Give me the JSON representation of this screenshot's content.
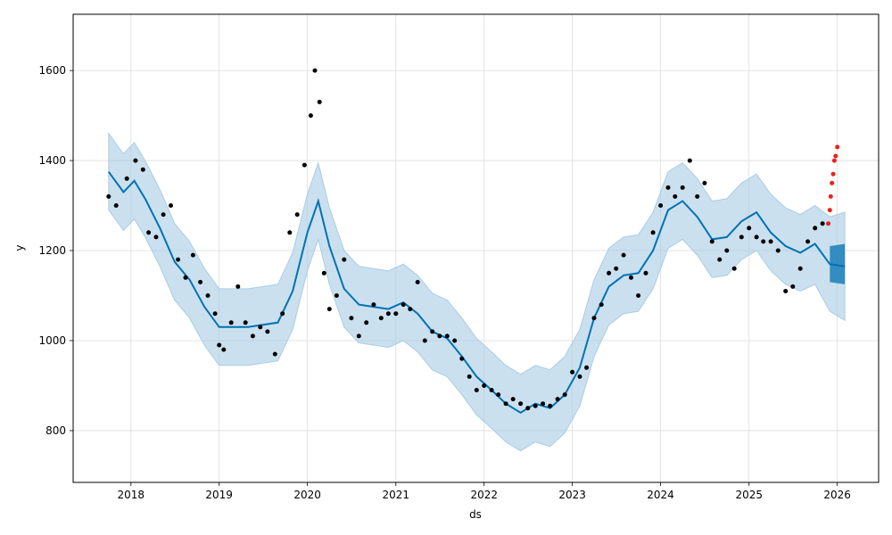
{
  "chart_data": {
    "type": "scatter",
    "title": "",
    "xlabel": "ds",
    "ylabel": "y",
    "x_type": "date",
    "xlim": [
      "2017-05-07",
      "2026-06-21"
    ],
    "ylim": [
      685,
      1725
    ],
    "grid": true,
    "x_ticks": [
      "2018",
      "2019",
      "2020",
      "2021",
      "2022",
      "2023",
      "2024",
      "2025",
      "2026"
    ],
    "y_ticks": [
      800,
      1000,
      1200,
      1400,
      1600
    ],
    "colors": {
      "observed": "#000000",
      "recent": "#e8231c",
      "forecast": "#0072b2",
      "interval": "#a8cce4"
    },
    "series": [
      {
        "type": "line",
        "x": [
          "2017-10-01",
          "2017-12-01",
          "2018-01-15",
          "2018-03-01",
          "2018-05-01",
          "2018-07-01",
          "2018-09-01",
          "2018-11-01",
          "2019-01-01",
          "2019-03-01",
          "2019-05-01",
          "2019-07-01",
          "2019-09-01",
          "2019-11-01",
          "2020-01-01",
          "2020-02-15",
          "2020-04-01",
          "2020-06-01",
          "2020-08-01",
          "2020-10-01",
          "2020-12-01",
          "2021-02-01",
          "2021-04-01",
          "2021-06-01",
          "2021-08-01",
          "2021-10-01",
          "2021-12-01",
          "2022-02-01",
          "2022-04-01",
          "2022-06-01",
          "2022-08-01",
          "2022-10-01",
          "2022-12-01",
          "2023-02-01",
          "2023-04-01",
          "2023-06-01",
          "2023-08-01",
          "2023-10-01",
          "2023-12-01",
          "2024-02-01",
          "2024-04-01",
          "2024-06-01",
          "2024-08-01",
          "2024-10-01",
          "2024-12-01",
          "2025-02-01",
          "2025-04-01",
          "2025-06-01",
          "2025-08-01",
          "2025-10-01",
          "2025-12-01",
          "2026-02-01"
        ],
        "y": [
          1375,
          1330,
          1355,
          1315,
          1250,
          1175,
          1135,
          1075,
          1030,
          1030,
          1030,
          1035,
          1040,
          1110,
          1240,
          1310,
          1210,
          1115,
          1080,
          1075,
          1070,
          1085,
          1060,
          1020,
          1005,
          965,
          920,
          890,
          860,
          840,
          860,
          850,
          880,
          940,
          1050,
          1120,
          1145,
          1150,
          1200,
          1290,
          1310,
          1275,
          1225,
          1230,
          1265,
          1285,
          1240,
          1210,
          1195,
          1215,
          1170,
          1165
        ]
      },
      {
        "type": "area",
        "x": [
          "2017-10-01",
          "2017-12-01",
          "2018-01-15",
          "2018-03-01",
          "2018-05-01",
          "2018-07-01",
          "2018-09-01",
          "2018-11-01",
          "2019-01-01",
          "2019-03-01",
          "2019-05-01",
          "2019-07-01",
          "2019-09-01",
          "2019-11-01",
          "2020-01-01",
          "2020-02-15",
          "2020-04-01",
          "2020-06-01",
          "2020-08-01",
          "2020-10-01",
          "2020-12-01",
          "2021-02-01",
          "2021-04-01",
          "2021-06-01",
          "2021-08-01",
          "2021-10-01",
          "2021-12-01",
          "2022-02-01",
          "2022-04-01",
          "2022-06-01",
          "2022-08-01",
          "2022-10-01",
          "2022-12-01",
          "2023-02-01",
          "2023-04-01",
          "2023-06-01",
          "2023-08-01",
          "2023-10-01",
          "2023-12-01",
          "2024-02-01",
          "2024-04-01",
          "2024-06-01",
          "2024-08-01",
          "2024-10-01",
          "2024-12-01",
          "2025-02-01",
          "2025-04-01",
          "2025-06-01",
          "2025-08-01",
          "2025-10-01",
          "2025-12-01",
          "2026-02-01"
        ],
        "upper": [
          1460,
          1415,
          1440,
          1400,
          1335,
          1260,
          1220,
          1160,
          1115,
          1115,
          1115,
          1120,
          1125,
          1195,
          1325,
          1395,
          1295,
          1200,
          1165,
          1160,
          1155,
          1170,
          1145,
          1105,
          1090,
          1050,
          1005,
          975,
          945,
          925,
          945,
          935,
          965,
          1025,
          1135,
          1205,
          1230,
          1235,
          1285,
          1375,
          1395,
          1360,
          1310,
          1315,
          1350,
          1370,
          1325,
          1295,
          1280,
          1300,
          1275,
          1285
        ],
        "lower": [
          1290,
          1245,
          1270,
          1230,
          1165,
          1090,
          1050,
          990,
          945,
          945,
          945,
          950,
          955,
          1025,
          1155,
          1225,
          1125,
          1030,
          995,
          990,
          985,
          1000,
          975,
          935,
          920,
          880,
          835,
          805,
          775,
          755,
          775,
          765,
          795,
          855,
          965,
          1035,
          1060,
          1065,
          1115,
          1205,
          1225,
          1190,
          1140,
          1145,
          1180,
          1200,
          1155,
          1125,
          1110,
          1125,
          1065,
          1045
        ]
      },
      {
        "type": "scatter",
        "x": [
          "2017-10-01",
          "2017-11-01",
          "2017-12-15",
          "2018-01-20",
          "2018-02-20",
          "2018-03-15",
          "2018-04-15",
          "2018-05-15",
          "2018-06-15",
          "2018-07-15",
          "2018-08-15",
          "2018-09-15",
          "2018-10-15",
          "2018-11-15",
          "2018-12-15",
          "2019-01-01",
          "2019-01-20",
          "2019-02-20",
          "2019-03-20",
          "2019-04-20",
          "2019-05-20",
          "2019-06-20",
          "2019-07-20",
          "2019-08-20",
          "2019-09-20",
          "2019-10-20",
          "2019-11-20",
          "2019-12-20",
          "2020-01-15",
          "2020-02-01",
          "2020-02-20",
          "2020-03-10",
          "2020-04-01",
          "2020-05-01",
          "2020-06-01",
          "2020-07-01",
          "2020-08-01",
          "2020-09-01",
          "2020-10-01",
          "2020-11-01",
          "2020-12-01",
          "2021-01-01",
          "2021-02-01",
          "2021-03-01",
          "2021-04-01",
          "2021-05-01",
          "2021-06-01",
          "2021-07-01",
          "2021-08-01",
          "2021-09-01",
          "2021-10-01",
          "2021-11-01",
          "2021-12-01",
          "2022-01-01",
          "2022-02-01",
          "2022-03-01",
          "2022-04-01",
          "2022-05-01",
          "2022-06-01",
          "2022-07-01",
          "2022-08-01",
          "2022-09-01",
          "2022-10-01",
          "2022-11-01",
          "2022-12-01",
          "2023-01-01",
          "2023-02-01",
          "2023-03-01",
          "2023-04-01",
          "2023-05-01",
          "2023-06-01",
          "2023-07-01",
          "2023-08-01",
          "2023-09-01",
          "2023-10-01",
          "2023-11-01",
          "2023-12-01",
          "2024-01-01",
          "2024-02-01",
          "2024-03-01",
          "2024-04-01",
          "2024-05-01",
          "2024-06-01",
          "2024-07-01",
          "2024-08-01",
          "2024-09-01",
          "2024-10-01",
          "2024-11-01",
          "2024-12-01",
          "2025-01-01",
          "2025-02-01",
          "2025-03-01",
          "2025-04-01",
          "2025-05-01",
          "2025-06-01",
          "2025-07-01",
          "2025-08-01",
          "2025-09-01",
          "2025-10-01",
          "2025-11-01"
        ],
        "y": [
          1320,
          1300,
          1360,
          1400,
          1380,
          1240,
          1230,
          1280,
          1300,
          1180,
          1140,
          1190,
          1130,
          1100,
          1060,
          990,
          980,
          1040,
          1120,
          1040,
          1010,
          1030,
          1020,
          970,
          1060,
          1240,
          1280,
          1390,
          1500,
          1600,
          1530,
          1150,
          1070,
          1100,
          1180,
          1050,
          1010,
          1040,
          1080,
          1050,
          1060,
          1060,
          1080,
          1070,
          1130,
          1000,
          1020,
          1010,
          1010,
          1000,
          960,
          920,
          890,
          900,
          890,
          880,
          860,
          870,
          860,
          850,
          855,
          860,
          855,
          870,
          880,
          930,
          920,
          940,
          1050,
          1080,
          1150,
          1160,
          1190,
          1140,
          1100,
          1150,
          1240,
          1300,
          1340,
          1320,
          1340,
          1400,
          1320,
          1350,
          1220,
          1180,
          1200,
          1160,
          1230,
          1250,
          1230,
          1220,
          1220,
          1200,
          1110,
          1120,
          1160,
          1220,
          1250,
          1260
        ]
      },
      {
        "type": "scatter",
        "x": [
          "2025-11-25",
          "2025-12-01",
          "2025-12-05",
          "2025-12-10",
          "2025-12-15",
          "2025-12-20",
          "2025-12-25",
          "2026-01-01"
        ],
        "y": [
          1260,
          1290,
          1320,
          1350,
          1370,
          1400,
          1410,
          1430
        ]
      },
      {
        "type": "band",
        "x": [
          "2025-12-01",
          "2026-02-01"
        ],
        "upper": [
          1210,
          1215
        ],
        "lower": [
          1130,
          1125
        ]
      }
    ]
  }
}
